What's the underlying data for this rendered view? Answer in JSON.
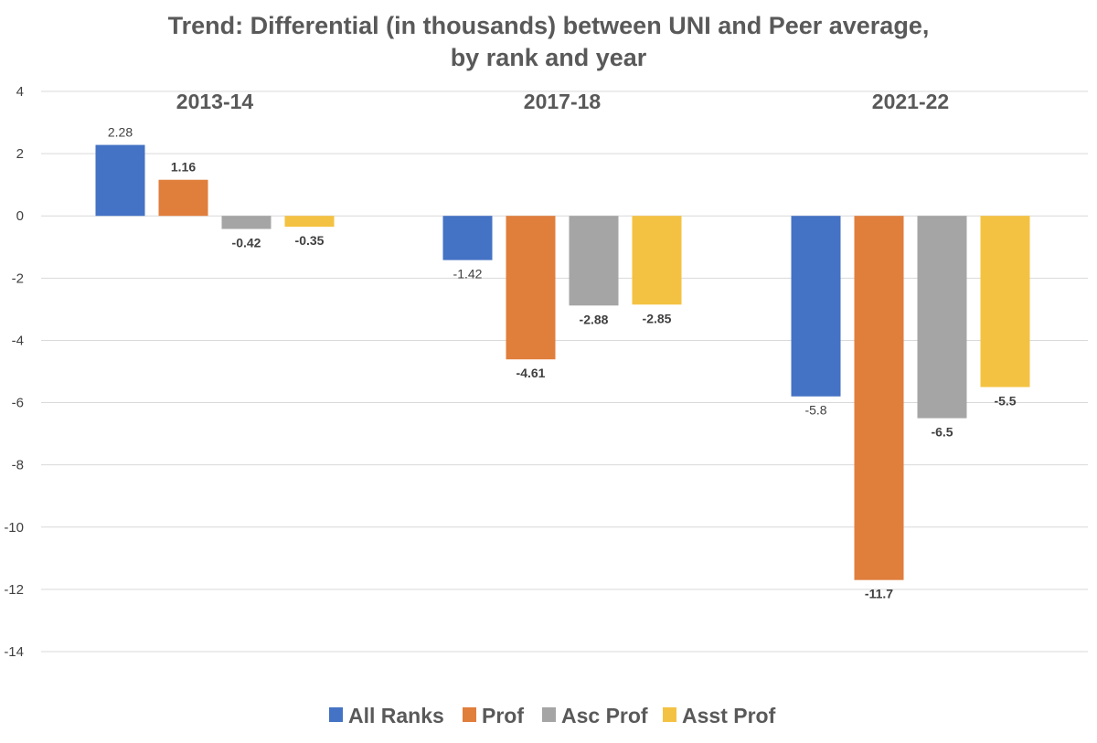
{
  "chart_data": {
    "type": "bar",
    "title_lines": [
      "Trend: Differential (in thousands) between UNI and Peer average,",
      "by rank and year"
    ],
    "categories": [
      "2013-14",
      "2017-18",
      "2021-22"
    ],
    "series": [
      {
        "name": "All Ranks",
        "color": "#4472c4",
        "values": [
          2.28,
          -1.42,
          -5.8
        ],
        "labels": [
          "2.28",
          "-1.42",
          "-5.8"
        ],
        "label_bold": false
      },
      {
        "name": "Prof",
        "color": "#e07e3c",
        "values": [
          1.16,
          -4.61,
          -11.7
        ],
        "labels": [
          "1.16",
          "-4.61",
          "-11.7"
        ],
        "label_bold": true
      },
      {
        "name": "Asc Prof",
        "color": "#a5a5a5",
        "values": [
          -0.42,
          -2.88,
          -6.5
        ],
        "labels": [
          "-0.42",
          "-2.88",
          "-6.5"
        ],
        "label_bold": true
      },
      {
        "name": "Asst Prof",
        "color": "#f4c242",
        "values": [
          -0.35,
          -2.85,
          -5.5
        ],
        "labels": [
          "-0.35",
          "-2.85",
          "-5.5"
        ],
        "label_bold": true
      }
    ],
    "yticks": [
      4,
      2,
      0,
      -2,
      -4,
      -6,
      -8,
      -10,
      -12,
      -14
    ],
    "ylim": [
      -14,
      4
    ],
    "grid": true,
    "legend_position": "bottom",
    "category_label_position": "top"
  }
}
